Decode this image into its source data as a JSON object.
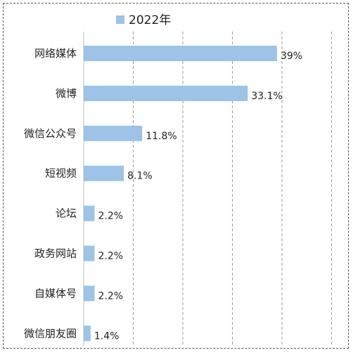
{
  "chart_data": {
    "type": "bar",
    "orientation": "horizontal",
    "categories": [
      "网络媒体",
      "微博",
      "微信公众号",
      "短视频",
      "论坛",
      "政务网站",
      "自媒体号",
      "微信朋友圈"
    ],
    "series": [
      {
        "name": "2022年",
        "values": [
          39,
          33.1,
          11.8,
          8.1,
          2.2,
          2.2,
          2.2,
          1.4
        ],
        "labels": [
          "39%",
          "33.1%",
          "11.8%",
          "8.1%",
          "2.2%",
          "2.2%",
          "2.2%",
          "1.4%"
        ],
        "color": "#9DC3E6"
      }
    ],
    "xlim": [
      0,
      50
    ],
    "xtick_step": 10,
    "grid": "vertical-dashed",
    "legend_position": "top-center"
  }
}
